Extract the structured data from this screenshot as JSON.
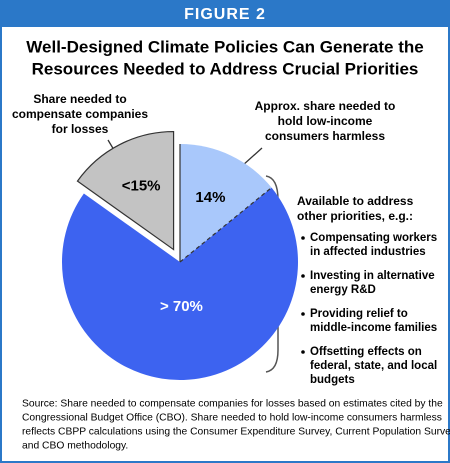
{
  "chart_data": {
    "type": "pie",
    "header": "FIGURE 2",
    "title": [
      "Well-Designed Climate Policies Can Generate the",
      "Resources Needed to Address Crucial Priorities"
    ],
    "categories": [
      [
        "Approx. share needed to",
        "hold low-income",
        "consumers harmless"
      ],
      [
        "Available to address",
        "other priorities, e.g.:"
      ],
      [
        "Share needed to",
        "compensate companies",
        "for losses"
      ]
    ],
    "values": [
      14,
      70,
      15
    ],
    "value_labels": [
      "14%",
      "> 70%",
      "<15%"
    ],
    "colors": [
      "#a9c8fb",
      "#3d63f0",
      "#c3c3c3"
    ],
    "exploded": [
      false,
      false,
      true
    ],
    "bullets": [
      [
        "Compensating workers",
        "in affected industries"
      ],
      [
        "Investing in alternative",
        "energy R&D"
      ],
      [
        "Providing relief to",
        "middle-income families"
      ],
      [
        "Offsetting effects on",
        "federal, state, and local",
        "budgets"
      ]
    ],
    "source": [
      "Source: Share needed to compensate companies for losses based on estimates cited by the",
      "Congressional Budget Office (CBO).  Share needed to hold low-income consumers harmless",
      "reflects CBPP calculations using the Consumer Expenditure Survey, Current Population Survey,",
      "and CBO methodology."
    ]
  }
}
